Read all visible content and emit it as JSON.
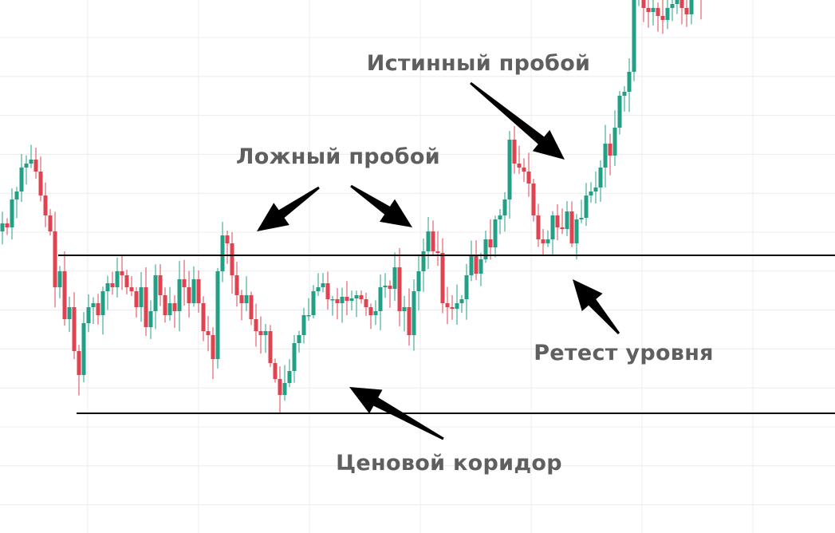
{
  "chart_data": {
    "type": "candlestick",
    "title": "",
    "xlabel": "",
    "ylabel": "",
    "ylim": [
      -6.8,
      60
    ],
    "grid": true,
    "colors": {
      "up": "#22a085",
      "down": "#e0434f",
      "level_line": "#000000",
      "grid": "#ececec",
      "annotation_text": "#5f5f5f",
      "arrow": "#000000"
    },
    "closes": [
      32,
      31.5,
      35,
      36,
      39,
      39.5,
      40,
      38.5,
      35.5,
      33,
      31,
      24,
      26,
      20,
      21.5,
      16,
      13,
      19.5,
      21.5,
      22,
      20.5,
      23.5,
      24.5,
      24,
      26,
      25.5,
      24,
      23.5,
      21.5,
      24,
      19,
      21,
      25.5,
      23,
      20.5,
      22,
      21,
      25,
      24,
      22,
      25,
      22,
      18.5,
      18,
      15,
      26,
      30.5,
      29.5,
      25.5,
      23,
      22,
      23,
      20,
      18.5,
      18,
      18.5,
      14.5,
      12.5,
      10.5,
      12,
      13.5,
      17,
      18,
      20.5,
      20.5,
      23.5,
      24,
      24.5,
      22.5,
      22.5,
      22,
      22.8,
      22.3,
      22.6,
      23,
      22.5,
      21.5,
      20.5,
      21,
      24,
      24.2,
      23.8,
      26.5,
      21,
      21.5,
      18,
      23.5,
      26,
      28.5,
      31,
      28.5,
      28.3,
      22,
      21.5,
      21.3,
      22,
      22.5,
      25.5,
      28,
      25.7,
      27.5,
      30,
      29,
      32.5,
      33,
      35,
      42.5,
      39.5,
      39,
      38.5,
      37,
      33,
      30,
      29.5,
      30,
      33,
      31.5,
      31.3,
      33.5,
      29.5,
      32.5,
      32.7,
      35.5,
      36,
      36.5,
      39,
      42,
      40.5,
      44,
      48,
      48.5,
      51,
      60,
      61,
      59,
      58.5,
      59,
      58,
      57.5,
      59,
      59.5,
      60.5,
      59,
      58.2,
      61,
      62,
      60
    ],
    "levels": [
      {
        "name": "resistance",
        "value": 28.0
      },
      {
        "name": "support",
        "value": 8.2
      }
    ],
    "annotations": {
      "false_breakout": "Ложный пробой",
      "true_breakout": "Истинный пробой",
      "retest": "Ретест уровня",
      "price_corridor": "Ценовой коридор"
    }
  }
}
